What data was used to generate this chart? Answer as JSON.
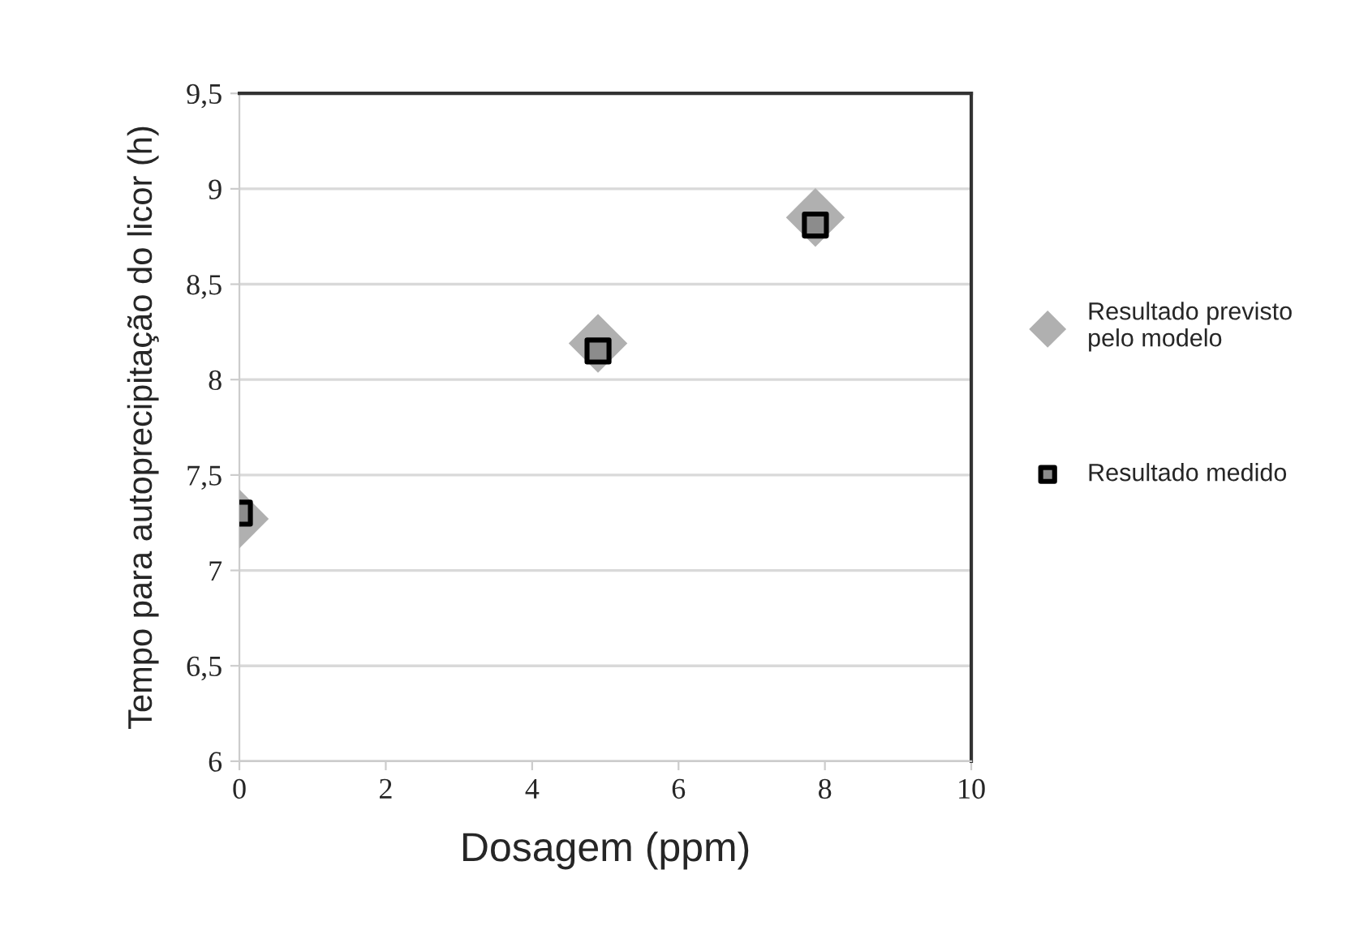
{
  "chart_data": {
    "type": "scatter",
    "xlabel": "Dosagem (ppm)",
    "ylabel": "Tempo para autoprecipitação do licor (h)",
    "x": [
      0,
      4.9,
      7.87
    ],
    "series": [
      {
        "name": "Resultado previsto\npelo modelo",
        "color": "#b0b0b0",
        "marker": "diamond",
        "values": [
          7.27,
          8.19,
          8.85
        ]
      },
      {
        "name": "Resultado medido",
        "color": "#8c8c8c",
        "marker": "square",
        "values": [
          7.3,
          8.15,
          8.81
        ]
      }
    ],
    "xlim": [
      0,
      10
    ],
    "xticks": [
      0,
      2,
      4,
      6,
      8,
      10
    ],
    "ylim": [
      6,
      9.5
    ],
    "yticks": [
      6,
      {
        "value": 6.5,
        "label": "6,5"
      },
      7,
      {
        "value": 7.5,
        "label": "7,5"
      },
      8,
      {
        "value": 8.5,
        "label": "8,5"
      },
      9,
      {
        "value": 9.5,
        "label": "9,5"
      }
    ],
    "grid": "y",
    "legend": "right"
  }
}
